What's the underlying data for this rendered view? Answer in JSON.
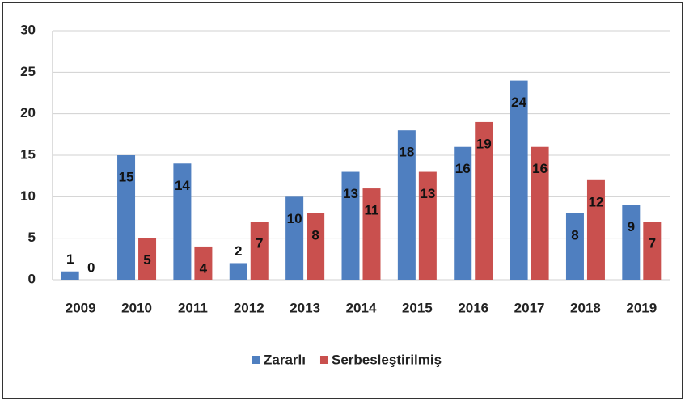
{
  "chart_data": {
    "type": "bar",
    "categories": [
      "2009",
      "2010",
      "2011",
      "2012",
      "2013",
      "2014",
      "2015",
      "2016",
      "2017",
      "2018",
      "2019"
    ],
    "series": [
      {
        "name": "Zararlı",
        "color": "#4f7fc0",
        "values": [
          1,
          15,
          14,
          2,
          10,
          13,
          18,
          16,
          24,
          8,
          9
        ]
      },
      {
        "name": "Serbesleştirilmiş",
        "color": "#c9504e",
        "values": [
          0,
          5,
          4,
          7,
          8,
          11,
          13,
          19,
          16,
          12,
          7
        ]
      }
    ],
    "ylim": [
      0,
      30
    ],
    "yticks": [
      0,
      5,
      10,
      15,
      20,
      25,
      30
    ],
    "grid": true,
    "legend": "bottom"
  }
}
